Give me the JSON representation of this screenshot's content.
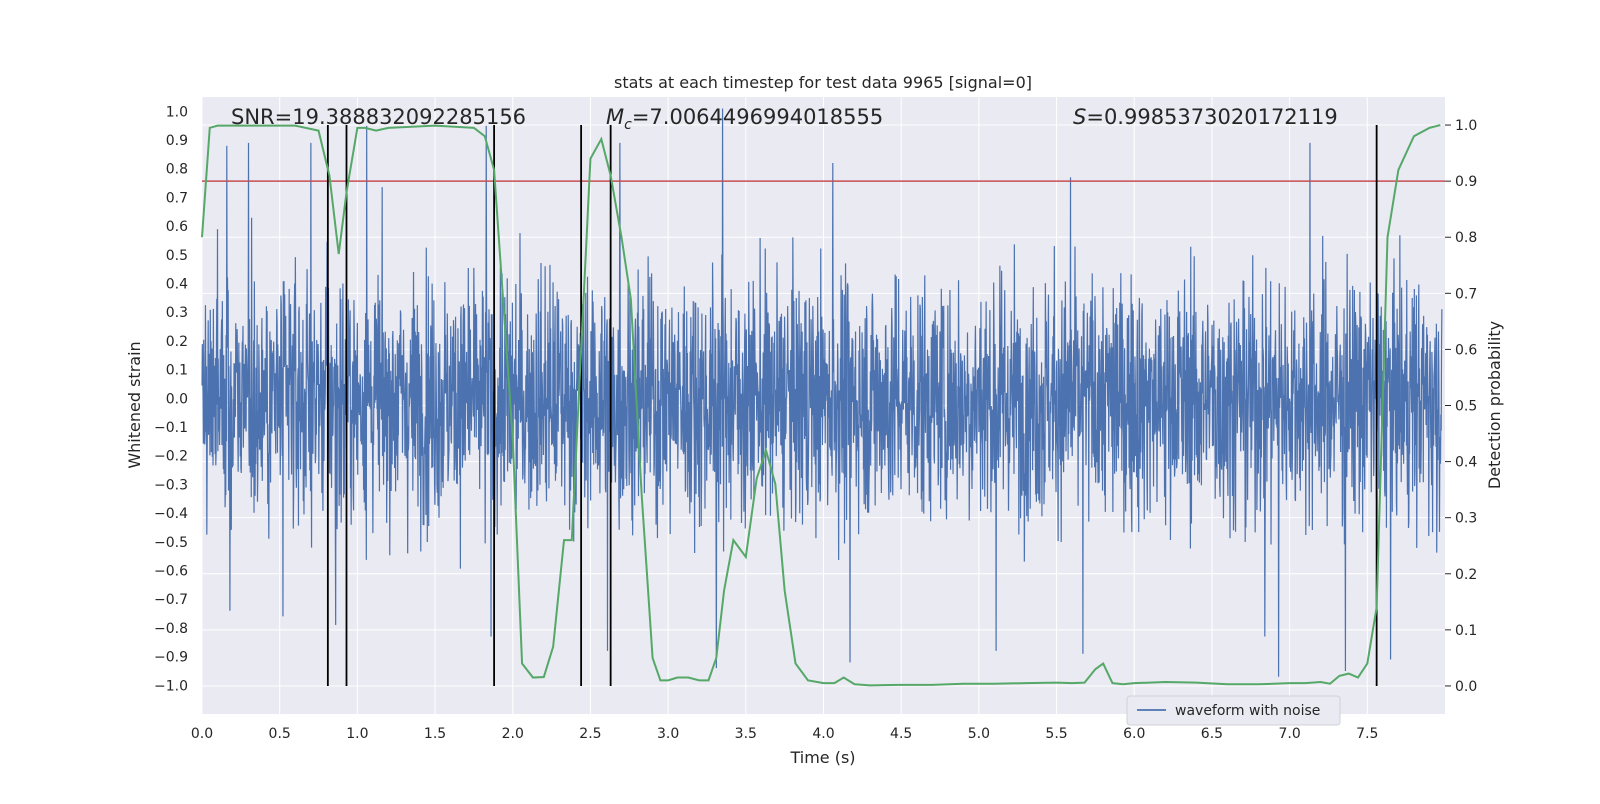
{
  "chart_data": {
    "type": "line",
    "title": "stats at each timestep for test data 9965 [signal=0]",
    "xlabel": "Time (s)",
    "ylabel": "Whitened strain",
    "y2label": "Detection probability",
    "xlim": [
      0.0,
      8.0
    ],
    "ylim": [
      -1.1,
      1.05
    ],
    "y2lim": [
      -0.05,
      1.05
    ],
    "x_ticks": [
      0.0,
      0.5,
      1.0,
      1.5,
      2.0,
      2.5,
      3.0,
      3.5,
      4.0,
      4.5,
      5.0,
      5.5,
      6.0,
      6.5,
      7.0,
      7.5
    ],
    "x_tick_labels": [
      "0.0",
      "0.5",
      "1.0",
      "1.5",
      "2.0",
      "2.5",
      "3.0",
      "3.5",
      "4.0",
      "4.5",
      "5.0",
      "5.5",
      "6.0",
      "6.5",
      "7.0",
      "7.5"
    ],
    "y_ticks": [
      1.0,
      0.9,
      0.8,
      0.7,
      0.6,
      0.5,
      0.4,
      0.3,
      0.2,
      0.1,
      0.0,
      -0.1,
      -0.2,
      -0.3,
      -0.4,
      -0.5,
      -0.6,
      -0.7,
      -0.8,
      -0.9,
      -1.0
    ],
    "y_tick_labels": [
      "1.0",
      "0.9",
      "0.8",
      "0.7",
      "0.6",
      "0.5",
      "0.4",
      "0.3",
      "0.2",
      "0.1",
      "0.0",
      "−0.1",
      "−0.2",
      "−0.3",
      "−0.4",
      "−0.5",
      "−0.6",
      "−0.7",
      "−0.8",
      "−0.9",
      "−1.0"
    ],
    "y2_ticks": [
      1.0,
      0.9,
      0.8,
      0.7,
      0.6,
      0.5,
      0.4,
      0.3,
      0.2,
      0.1,
      0.0
    ],
    "y2_tick_labels": [
      "1.0",
      "0.9",
      "0.8",
      "0.7",
      "0.6",
      "0.5",
      "0.4",
      "0.3",
      "0.2",
      "0.1",
      "0.0"
    ],
    "grid": true,
    "legend": {
      "placement": "lower-right",
      "entries": [
        "waveform with noise"
      ]
    },
    "annotations": {
      "snr": "SNR=19.388832092285156",
      "mc_symbol": "M",
      "mc_subscript": "c",
      "mc_value": "=7.0064496994018555",
      "s_symbol": "S",
      "s_value": "=0.9985373020172119"
    },
    "threshold": {
      "axis": "y2",
      "value": 0.9,
      "color": "#c44e52"
    },
    "vertical_markers": [
      0.81,
      0.93,
      1.88,
      2.44,
      2.63,
      7.56
    ],
    "series": [
      {
        "name": "waveform with noise",
        "axis": "y",
        "color": "#4c72b0",
        "x_range": [
          0.0,
          7.98
        ],
        "typical_amplitude": 0.38,
        "peak_values": [
          [
            0.16,
            0.88
          ],
          [
            0.3,
            0.89
          ],
          [
            0.7,
            0.89
          ],
          [
            1.06,
            0.95
          ],
          [
            1.83,
            0.95
          ],
          [
            2.69,
            0.89
          ],
          [
            3.35,
            1.01
          ],
          [
            4.06,
            0.82
          ],
          [
            5.59,
            0.77
          ],
          [
            7.13,
            0.89
          ],
          [
            0.18,
            -0.74
          ],
          [
            0.52,
            -0.76
          ],
          [
            0.86,
            -0.79
          ],
          [
            1.86,
            -0.83
          ],
          [
            2.61,
            -0.88
          ],
          [
            3.31,
            -0.94
          ],
          [
            4.17,
            -0.92
          ],
          [
            5.11,
            -0.88
          ],
          [
            5.67,
            -0.89
          ],
          [
            6.84,
            -0.83
          ],
          [
            6.93,
            -0.97
          ],
          [
            7.36,
            -0.95
          ],
          [
            7.65,
            -0.91
          ]
        ]
      },
      {
        "name": "",
        "axis": "y2",
        "color": "#55a868",
        "x": [
          0.0,
          0.05,
          0.1,
          0.2,
          0.4,
          0.6,
          0.75,
          0.82,
          0.88,
          0.93,
          1.0,
          1.05,
          1.12,
          1.2,
          1.5,
          1.75,
          1.82,
          1.88,
          1.93,
          2.0,
          2.06,
          2.13,
          2.2,
          2.26,
          2.33,
          2.38,
          2.44,
          2.5,
          2.57,
          2.63,
          2.7,
          2.76,
          2.83,
          2.9,
          2.95,
          3.0,
          3.06,
          3.13,
          3.2,
          3.26,
          3.31,
          3.36,
          3.42,
          3.5,
          3.57,
          3.63,
          3.69,
          3.75,
          3.82,
          3.9,
          4.0,
          4.07,
          4.13,
          4.2,
          4.3,
          4.5,
          4.7,
          4.9,
          5.1,
          5.3,
          5.5,
          5.6,
          5.68,
          5.75,
          5.8,
          5.86,
          5.93,
          6.0,
          6.2,
          6.4,
          6.6,
          6.8,
          7.0,
          7.1,
          7.2,
          7.26,
          7.32,
          7.38,
          7.44,
          7.5,
          7.56,
          7.63,
          7.7,
          7.8,
          7.9,
          7.97
        ],
        "y": [
          0.8,
          0.995,
          0.999,
          0.999,
          0.999,
          0.999,
          0.99,
          0.91,
          0.77,
          0.88,
          0.995,
          0.995,
          0.99,
          0.995,
          0.999,
          0.995,
          0.98,
          0.92,
          0.72,
          0.44,
          0.04,
          0.015,
          0.016,
          0.07,
          0.26,
          0.26,
          0.6,
          0.94,
          0.975,
          0.91,
          0.8,
          0.69,
          0.34,
          0.05,
          0.01,
          0.01,
          0.015,
          0.015,
          0.01,
          0.01,
          0.05,
          0.17,
          0.26,
          0.23,
          0.37,
          0.42,
          0.36,
          0.17,
          0.04,
          0.01,
          0.005,
          0.005,
          0.015,
          0.003,
          0.001,
          0.002,
          0.002,
          0.004,
          0.004,
          0.005,
          0.006,
          0.005,
          0.006,
          0.03,
          0.04,
          0.005,
          0.003,
          0.005,
          0.007,
          0.006,
          0.003,
          0.003,
          0.005,
          0.005,
          0.007,
          0.004,
          0.018,
          0.022,
          0.015,
          0.04,
          0.14,
          0.8,
          0.92,
          0.98,
          0.995,
          1.0
        ]
      }
    ]
  }
}
